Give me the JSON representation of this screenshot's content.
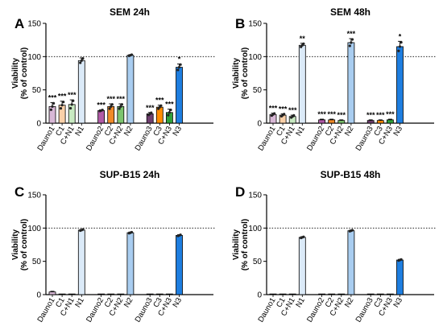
{
  "colors": {
    "axis": "#000000",
    "dauno": [
      "#d8b8d6",
      "#b05aa6",
      "#6f3f6f"
    ],
    "compound": [
      "#fad0a8",
      "#f08a28",
      "#ff8c00"
    ],
    "combo": [
      "#c8eac2",
      "#7cc46e",
      "#2fa13a"
    ],
    "n": [
      "#dbeaf8",
      "#a9cdf0",
      "#1e7ee0"
    ]
  },
  "chart_data": [
    {
      "panel": "A",
      "title": "SEM 24h",
      "type": "bar",
      "ylabel_top": "Viability",
      "ylabel_bottom": "(% of control)",
      "ylim": [
        0,
        150
      ],
      "yticks": [
        0,
        50,
        100,
        150
      ],
      "reference_line": 100,
      "categories": [
        "Dauno1",
        "C1",
        "C+N1",
        "N1",
        "Dauno2",
        "C2",
        "C+N2",
        "N2",
        "Dauno3",
        "C3",
        "C+N3",
        "N3"
      ],
      "values": [
        25,
        27,
        28,
        94,
        19,
        25,
        25,
        102,
        14,
        24,
        16,
        84
      ],
      "errors": [
        6,
        6,
        7,
        4,
        1,
        4,
        4,
        1,
        2,
        3,
        5,
        5
      ],
      "significance": [
        "***",
        "***",
        "***",
        "",
        "***",
        "***",
        "***",
        "",
        "***",
        "***",
        "***",
        "*"
      ]
    },
    {
      "panel": "B",
      "title": "SEM 48h",
      "type": "bar",
      "ylabel_top": "Viability",
      "ylabel_bottom": "(% of control)",
      "ylim": [
        0,
        150
      ],
      "yticks": [
        0,
        50,
        100,
        150
      ],
      "reference_line": 100,
      "categories": [
        "Dauno1",
        "C1",
        "C+N1",
        "N1",
        "Dauno2",
        "C2",
        "C+N2",
        "N2",
        "Dauno3",
        "C3",
        "C+N3",
        "N3"
      ],
      "values": [
        13,
        12,
        10,
        117,
        5,
        5,
        4,
        121,
        4,
        4,
        5,
        115
      ],
      "errors": [
        2,
        2,
        2,
        3,
        1,
        1,
        1,
        6,
        1,
        1,
        1,
        8
      ],
      "significance": [
        "***",
        "***",
        "***",
        "**",
        "***",
        "***",
        "***",
        "***",
        "***",
        "***",
        "***",
        "*"
      ]
    },
    {
      "panel": "C",
      "title": "SUP-B15 24h",
      "type": "bar",
      "ylabel_top": "Viability",
      "ylabel_bottom": "(% of control)",
      "ylim": [
        0,
        150
      ],
      "yticks": [
        0,
        50,
        100,
        150
      ],
      "reference_line": 100,
      "categories": [
        "Dauno1",
        "C1",
        "C+N1",
        "N1",
        "Dauno2",
        "C2",
        "C+N2",
        "N2",
        "Dauno3",
        "C3",
        "C+N3",
        "N3"
      ],
      "values": [
        4,
        1,
        1,
        97,
        1,
        1,
        1,
        93,
        1,
        1,
        1,
        89
      ],
      "errors": [
        1,
        0,
        0,
        1,
        0,
        0,
        0,
        1,
        0,
        0,
        0,
        1
      ],
      "significance": [
        "",
        "",
        "",
        "",
        "",
        "",
        "",
        "",
        "",
        "",
        "",
        ""
      ]
    },
    {
      "panel": "D",
      "title": "SUP-B15 48h",
      "type": "bar",
      "ylabel_top": "Viability",
      "ylabel_bottom": "(% of control)",
      "ylim": [
        0,
        150
      ],
      "yticks": [
        0,
        50,
        100,
        150
      ],
      "reference_line": 100,
      "categories": [
        "Dauno1",
        "C1",
        "C+N1",
        "N1",
        "Dauno2",
        "C2",
        "C+N2",
        "N2",
        "Dauno3",
        "C3",
        "C+N3",
        "N3"
      ],
      "values": [
        1,
        1,
        1,
        86,
        1,
        1,
        1,
        96,
        1,
        1,
        1,
        52
      ],
      "errors": [
        0,
        0,
        0,
        1,
        0,
        0,
        0,
        1,
        0,
        0,
        0,
        1
      ],
      "significance": [
        "",
        "",
        "",
        "",
        "",
        "",
        "",
        "",
        "",
        "",
        "",
        ""
      ]
    }
  ]
}
